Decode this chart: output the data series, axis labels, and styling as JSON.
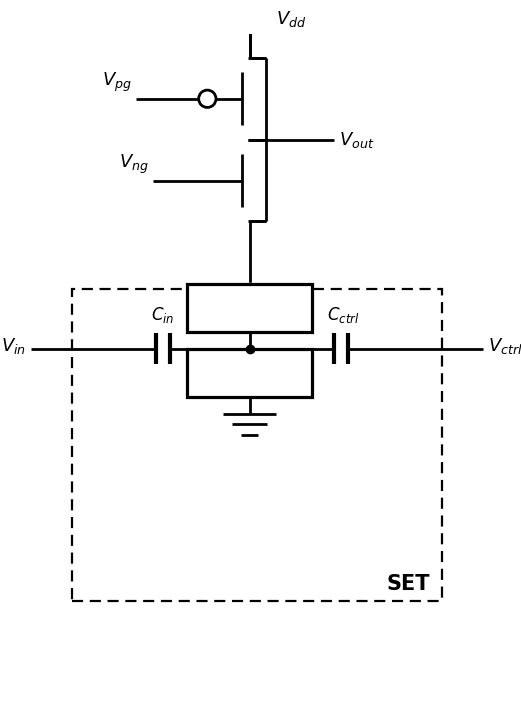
{
  "bg_color": "#ffffff",
  "line_color": "#000000",
  "line_width": 2.0,
  "fig_width": 5.21,
  "fig_height": 7.17,
  "dpi": 100,
  "xlim": [
    0,
    10
  ],
  "ylim": [
    0,
    14
  ]
}
